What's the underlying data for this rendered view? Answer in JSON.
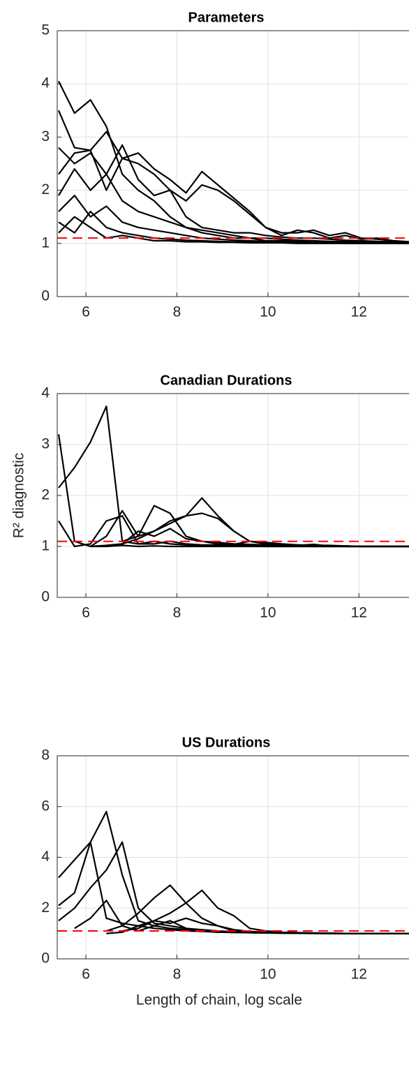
{
  "chart_data": [
    {
      "type": "line",
      "title": "Parameters",
      "color": "#000000",
      "grid": true,
      "xlim": [
        5.37,
        13.1
      ],
      "xticks": [
        6,
        8,
        10,
        12
      ],
      "ylim": [
        0,
        5
      ],
      "yticks": [
        0,
        1,
        2,
        3,
        4,
        5
      ],
      "reference_line": {
        "value": 1.1,
        "color": "#ff0000",
        "style": "dashed"
      },
      "x": [
        5.4,
        5.75,
        6.1,
        6.45,
        6.8,
        7.15,
        7.5,
        7.85,
        8.2,
        8.55,
        8.9,
        9.25,
        9.6,
        9.95,
        10.3,
        10.65,
        11.0,
        11.35,
        11.7,
        12.05,
        12.4,
        12.75,
        13.1
      ],
      "series": [
        {
          "values": [
            4.05,
            3.45,
            3.7,
            3.2,
            2.3,
            2.0,
            1.8,
            1.5,
            1.3,
            1.2,
            1.15,
            1.1,
            1.1,
            1.05,
            1.05,
            1.05,
            1.05,
            1.03,
            1.03,
            1.02,
            1.02,
            1.01,
            1.01
          ]
        },
        {
          "values": [
            3.5,
            2.8,
            2.75,
            3.1,
            2.6,
            2.7,
            2.4,
            2.2,
            1.95,
            2.35,
            2.1,
            1.85,
            1.6,
            1.3,
            1.2,
            1.2,
            1.25,
            1.15,
            1.2,
            1.1,
            1.08,
            1.05,
            1.03
          ]
        },
        {
          "values": [
            2.8,
            2.5,
            2.7,
            2.3,
            2.85,
            2.2,
            1.9,
            2.0,
            1.8,
            2.1,
            2.0,
            1.8,
            1.55,
            1.3,
            1.15,
            1.25,
            1.2,
            1.1,
            1.15,
            1.08,
            1.1,
            1.05,
            1.03
          ]
        },
        {
          "values": [
            2.3,
            2.7,
            2.75,
            2.0,
            2.6,
            2.5,
            2.3,
            2.0,
            1.5,
            1.3,
            1.25,
            1.2,
            1.2,
            1.15,
            1.12,
            1.1,
            1.1,
            1.08,
            1.06,
            1.05,
            1.04,
            1.03,
            1.02
          ]
        },
        {
          "values": [
            1.9,
            2.4,
            2.0,
            2.3,
            1.8,
            1.6,
            1.5,
            1.4,
            1.3,
            1.25,
            1.2,
            1.15,
            1.1,
            1.1,
            1.08,
            1.06,
            1.05,
            1.04,
            1.04,
            1.03,
            1.03,
            1.02,
            1.01
          ]
        },
        {
          "values": [
            1.6,
            1.9,
            1.5,
            1.7,
            1.4,
            1.3,
            1.25,
            1.2,
            1.15,
            1.1,
            1.08,
            1.06,
            1.05,
            1.04,
            1.03,
            1.03,
            1.02,
            1.02,
            1.01,
            1.01,
            1.01,
            1.0,
            1.0
          ]
        },
        {
          "values": [
            1.4,
            1.2,
            1.6,
            1.3,
            1.2,
            1.15,
            1.1,
            1.08,
            1.06,
            1.05,
            1.04,
            1.03,
            1.03,
            1.02,
            1.02,
            1.01,
            1.01,
            1.01,
            1.0,
            1.0,
            1.0,
            1.0,
            1.0
          ]
        },
        {
          "values": [
            1.2,
            1.5,
            1.3,
            1.1,
            1.15,
            1.1,
            1.05,
            1.05,
            1.03,
            1.03,
            1.02,
            1.02,
            1.01,
            1.01,
            1.01,
            1.0,
            1.0,
            1.0,
            1.0,
            1.0,
            1.0,
            1.0,
            1.0
          ]
        }
      ]
    },
    {
      "type": "line",
      "title": "Canadian Durations",
      "ylabel": "R² diagnostic",
      "color": "#000000",
      "grid": true,
      "xlim": [
        5.37,
        13.1
      ],
      "xticks": [
        6,
        8,
        10,
        12
      ],
      "ylim": [
        0,
        4
      ],
      "yticks": [
        0,
        1,
        2,
        3,
        4
      ],
      "reference_line": {
        "value": 1.1,
        "color": "#ff0000",
        "style": "dashed"
      },
      "x": [
        5.4,
        5.75,
        6.1,
        6.45,
        6.8,
        7.15,
        7.5,
        7.85,
        8.2,
        8.55,
        8.9,
        9.25,
        9.6,
        9.95,
        10.3,
        10.65,
        11.0,
        11.35,
        11.7,
        12.05,
        12.4,
        12.75,
        13.1
      ],
      "series": [
        {
          "values": [
            3.2,
            1.1,
            1.0,
            1.0,
            1.02,
            1.0,
            1.01,
            1.0,
            1.0,
            1.0,
            1.0,
            1.0,
            1.0,
            1.0,
            1.0,
            1.0,
            1.0,
            1.0,
            1.0,
            1.0,
            1.0,
            1.0,
            1.0
          ]
        },
        {
          "values": [
            2.15,
            2.55,
            3.05,
            3.75,
            1.1,
            1.05,
            1.1,
            1.05,
            1.03,
            1.02,
            1.02,
            1.01,
            1.01,
            1.0,
            1.0,
            1.0,
            1.0,
            1.0,
            1.0,
            1.0,
            1.0,
            1.0,
            1.0
          ]
        },
        {
          "values": [
            1.5,
            1.0,
            1.05,
            1.5,
            1.6,
            1.05,
            1.05,
            1.1,
            1.05,
            1.03,
            1.03,
            1.02,
            1.02,
            1.01,
            1.01,
            1.01,
            1.0,
            1.0,
            1.0,
            1.0,
            1.0,
            1.0,
            1.0
          ]
        },
        {
          "values": [
            null,
            null,
            1.0,
            1.2,
            1.7,
            1.2,
            1.8,
            1.65,
            1.2,
            1.1,
            1.08,
            1.05,
            1.04,
            1.03,
            1.02,
            1.02,
            1.01,
            1.01,
            1.0,
            1.0,
            1.0,
            1.0,
            1.0
          ]
        },
        {
          "values": [
            null,
            null,
            null,
            1.0,
            1.05,
            1.15,
            1.3,
            1.45,
            1.6,
            1.95,
            1.6,
            1.3,
            1.1,
            1.08,
            1.05,
            1.03,
            1.02,
            1.02,
            1.01,
            1.0,
            1.0,
            1.0,
            1.0
          ]
        },
        {
          "values": [
            null,
            null,
            null,
            null,
            1.1,
            1.2,
            1.3,
            1.5,
            1.6,
            1.65,
            1.55,
            1.3,
            1.1,
            1.06,
            1.04,
            1.03,
            1.02,
            1.01,
            1.01,
            1.0,
            1.0,
            1.0,
            1.0
          ]
        },
        {
          "values": [
            null,
            null,
            1.0,
            1.02,
            1.05,
            1.3,
            1.2,
            1.35,
            1.15,
            1.1,
            1.05,
            1.04,
            1.1,
            1.05,
            1.03,
            1.02,
            1.04,
            1.01,
            1.01,
            1.0,
            1.0,
            1.0,
            1.0
          ]
        }
      ]
    },
    {
      "type": "line",
      "title": "US Durations",
      "xlabel": "Length of chain, log scale",
      "color": "#000000",
      "grid": true,
      "xlim": [
        5.37,
        13.1
      ],
      "xticks": [
        6,
        8,
        10,
        12
      ],
      "ylim": [
        0,
        8
      ],
      "yticks": [
        0,
        2,
        4,
        6,
        8
      ],
      "reference_line": {
        "value": 1.1,
        "color": "#ff0000",
        "style": "dashed"
      },
      "x": [
        5.4,
        5.75,
        6.1,
        6.45,
        6.8,
        7.15,
        7.5,
        7.85,
        8.2,
        8.55,
        8.9,
        9.25,
        9.6,
        9.95,
        10.3,
        10.65,
        11.0,
        11.35,
        11.7,
        12.05,
        12.4,
        12.75,
        13.1
      ],
      "series": [
        {
          "values": [
            3.2,
            3.9,
            4.6,
            5.8,
            3.3,
            1.5,
            1.3,
            1.2,
            1.15,
            1.1,
            1.08,
            1.05,
            1.04,
            1.03,
            1.02,
            1.02,
            1.01,
            1.01,
            1.0,
            1.0,
            1.0,
            1.0,
            1.0
          ]
        },
        {
          "values": [
            2.1,
            2.6,
            4.6,
            1.6,
            1.4,
            1.3,
            1.2,
            1.15,
            1.1,
            1.08,
            1.05,
            1.04,
            1.03,
            1.02,
            1.02,
            1.01,
            1.01,
            1.0,
            1.0,
            1.0,
            1.0,
            1.0,
            1.0
          ]
        },
        {
          "values": [
            1.5,
            2.0,
            2.8,
            3.5,
            4.6,
            2.0,
            1.4,
            1.3,
            1.2,
            1.15,
            1.1,
            1.06,
            1.04,
            1.03,
            1.02,
            1.01,
            1.01,
            1.0,
            1.0,
            1.0,
            1.0,
            1.0,
            1.0
          ]
        },
        {
          "values": [
            null,
            1.2,
            1.6,
            2.3,
            1.3,
            1.1,
            1.3,
            1.5,
            1.2,
            1.1,
            1.05,
            1.04,
            1.03,
            1.02,
            1.01,
            1.01,
            1.0,
            1.0,
            1.0,
            1.0,
            1.0,
            1.0,
            1.0
          ]
        },
        {
          "values": [
            null,
            null,
            null,
            1.1,
            1.3,
            1.8,
            2.4,
            2.9,
            2.2,
            1.6,
            1.3,
            1.1,
            1.06,
            1.04,
            1.03,
            1.02,
            1.01,
            1.01,
            1.0,
            1.0,
            1.0,
            1.0,
            1.0
          ]
        },
        {
          "values": [
            null,
            null,
            null,
            null,
            1.1,
            1.2,
            1.5,
            1.8,
            2.2,
            2.7,
            2.0,
            1.7,
            1.2,
            1.1,
            1.05,
            1.03,
            1.02,
            1.01,
            1.0,
            1.0,
            1.0,
            1.0,
            1.0
          ]
        },
        {
          "values": [
            null,
            null,
            null,
            1.0,
            1.05,
            1.3,
            1.5,
            1.4,
            1.6,
            1.4,
            1.3,
            1.15,
            1.08,
            1.05,
            1.03,
            1.02,
            1.01,
            1.01,
            1.0,
            1.0,
            1.0,
            1.0,
            1.0
          ]
        }
      ]
    }
  ]
}
